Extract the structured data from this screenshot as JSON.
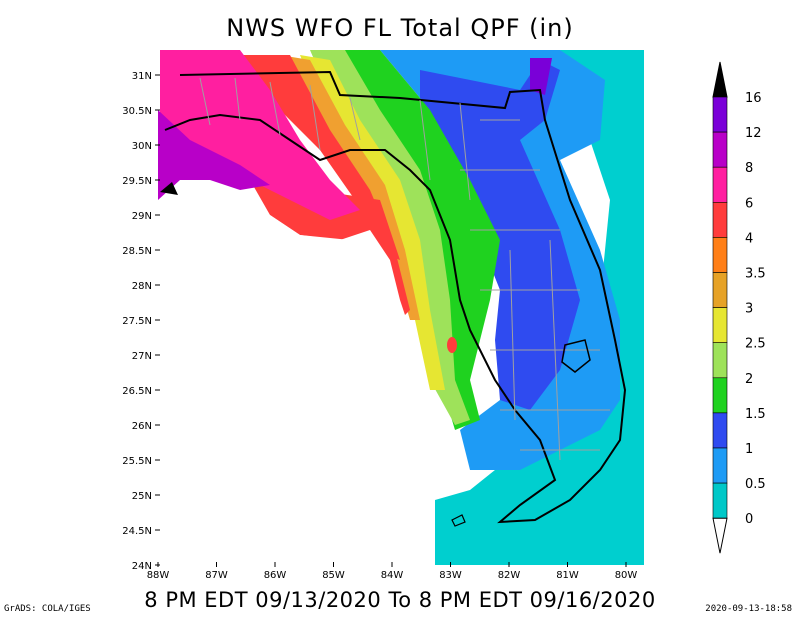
{
  "title": "NWS WFO FL Total QPF (in)",
  "subtitle": "8 PM EDT 09/13/2020 To 8 PM EDT 09/16/2020",
  "credit": "GrADS: COLA/IGES",
  "stamp": "2020-09-13-18:58",
  "axes": {
    "lat_labels": [
      "31N",
      "30.5N",
      "30N",
      "29.5N",
      "29N",
      "28.5N",
      "28N",
      "27.5N",
      "27N",
      "26.5N",
      "26N",
      "25.5N",
      "25N",
      "24.5N",
      "24N"
    ],
    "lon_labels": [
      "88W",
      "87W",
      "86W",
      "85W",
      "84W",
      "83W",
      "82W",
      "81W",
      "80W"
    ]
  },
  "colorbar": {
    "labels": [
      "16",
      "12",
      "8",
      "6",
      "4",
      "3.5",
      "3",
      "2.5",
      "2",
      "1.5",
      "1",
      "0.5",
      "0"
    ],
    "colors": [
      "#7a00d8",
      "#b800c8",
      "#ff1fa0",
      "#ff3c3c",
      "#ff7f17",
      "#e6a227",
      "#e6e632",
      "#9ee25a",
      "#1fd21f",
      "#2f4bf0",
      "#1e9bf5",
      "#00c8c8",
      "#00d2cc"
    ],
    "top_color": "#000000",
    "bottom_color": "#ffffff"
  }
}
